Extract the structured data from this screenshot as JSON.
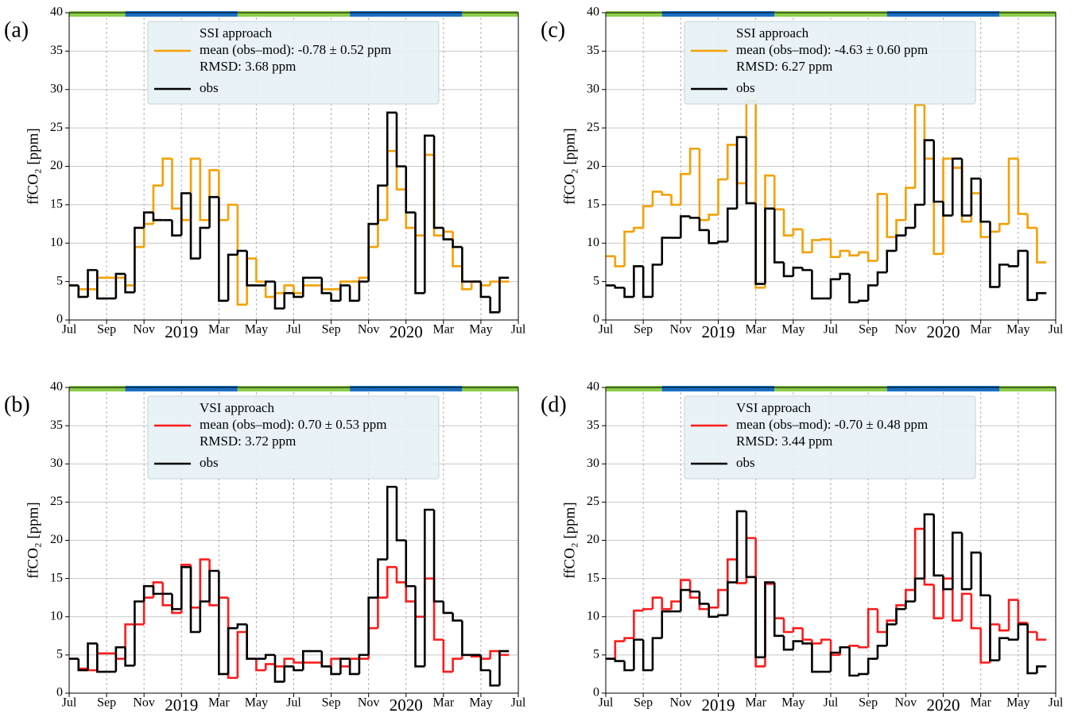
{
  "chart_data": [
    {
      "type": "line",
      "panel_label": "(a)",
      "ylabel": "ffCO₂ [ppm]",
      "step": "post",
      "grid": true,
      "xlim": [
        0,
        24
      ],
      "ylim": [
        0,
        40
      ],
      "xticks": [
        {
          "value": 0,
          "label": "Jul"
        },
        {
          "value": 2,
          "label": "Sep"
        },
        {
          "value": 4,
          "label": "Nov"
        },
        {
          "value": 6,
          "label": "2019"
        },
        {
          "value": 8,
          "label": "Mar"
        },
        {
          "value": 10,
          "label": "May"
        },
        {
          "value": 12,
          "label": "Jul"
        },
        {
          "value": 14,
          "label": "Sep"
        },
        {
          "value": 16,
          "label": "Nov"
        },
        {
          "value": 18,
          "label": "2020"
        },
        {
          "value": 20,
          "label": "Mar"
        },
        {
          "value": 22,
          "label": "May"
        },
        {
          "value": 24,
          "label": "Jul"
        }
      ],
      "yticks": [
        0,
        5,
        10,
        15,
        20,
        25,
        30,
        35,
        40
      ],
      "legend_title": "SSI approach",
      "legend_note": "RMSD: 3.68 ppm",
      "x": [
        0,
        0.5,
        1,
        1.5,
        2,
        2.5,
        3,
        3.5,
        4,
        4.5,
        5,
        5.5,
        6,
        6.5,
        7,
        7.5,
        8,
        8.5,
        9,
        9.5,
        10,
        10.5,
        11,
        11.5,
        12,
        12.5,
        13,
        13.5,
        14,
        14.5,
        15,
        15.5,
        16,
        16.5,
        17,
        17.5,
        18,
        18.5,
        19,
        19.5,
        20,
        20.5,
        21,
        21.5,
        22,
        22.5,
        23
      ],
      "series": [
        {
          "name": "mean (obs–mod): -0.78 ± 0.52 ppm",
          "color": "#f5a000",
          "values": [
            4.5,
            4,
            4,
            5.5,
            5.5,
            5.5,
            4.5,
            9.5,
            12.5,
            17.5,
            21,
            14.5,
            13,
            21,
            13,
            19.5,
            13,
            15,
            2,
            8,
            5,
            3,
            3.5,
            4.5,
            3.5,
            4.5,
            4.5,
            4,
            4,
            5,
            5,
            5.5,
            9.5,
            13,
            22,
            17,
            12,
            11,
            21.5,
            11,
            11.5,
            7,
            4,
            5,
            4.5,
            5,
            5
          ]
        },
        {
          "name": "obs",
          "color": "#000000",
          "values": [
            4.5,
            3,
            6.5,
            2.8,
            2.8,
            6,
            3.6,
            12,
            14,
            13,
            13,
            11,
            16.5,
            8,
            12,
            16,
            2.5,
            8.5,
            9,
            4.5,
            4.5,
            5,
            1.5,
            3.5,
            3,
            5.5,
            5.5,
            3.5,
            2.5,
            4.5,
            2.5,
            5,
            12.5,
            17.5,
            27,
            20,
            14,
            3.5,
            24,
            12,
            10.5,
            9.5,
            5,
            5,
            3,
            1,
            5.5
          ]
        }
      ]
    },
    {
      "type": "line",
      "panel_label": "(b)",
      "ylabel": "ffCO₂ [ppm]",
      "step": "post",
      "grid": true,
      "xlim": [
        0,
        24
      ],
      "ylim": [
        0,
        40
      ],
      "xticks": [
        {
          "value": 0,
          "label": "Jul"
        },
        {
          "value": 2,
          "label": "Sep"
        },
        {
          "value": 4,
          "label": "Nov"
        },
        {
          "value": 6,
          "label": "2019"
        },
        {
          "value": 8,
          "label": "Mar"
        },
        {
          "value": 10,
          "label": "May"
        },
        {
          "value": 12,
          "label": "Jul"
        },
        {
          "value": 14,
          "label": "Sep"
        },
        {
          "value": 16,
          "label": "Nov"
        },
        {
          "value": 18,
          "label": "2020"
        },
        {
          "value": 20,
          "label": "Mar"
        },
        {
          "value": 22,
          "label": "May"
        },
        {
          "value": 24,
          "label": "Jul"
        }
      ],
      "yticks": [
        0,
        5,
        10,
        15,
        20,
        25,
        30,
        35,
        40
      ],
      "legend_title": "VSI approach",
      "legend_note": "RMSD: 3.72 ppm",
      "x": [
        0,
        0.5,
        1,
        1.5,
        2,
        2.5,
        3,
        3.5,
        4,
        4.5,
        5,
        5.5,
        6,
        6.5,
        7,
        7.5,
        8,
        8.5,
        9,
        9.5,
        10,
        10.5,
        11,
        11.5,
        12,
        12.5,
        13,
        13.5,
        14,
        14.5,
        15,
        15.5,
        16,
        16.5,
        17,
        17.5,
        18,
        18.5,
        19,
        19.5,
        20,
        20.5,
        21,
        21.5,
        22,
        22.5,
        23
      ],
      "series": [
        {
          "name": "mean (obs–mod): 0.70 ± 0.53 ppm",
          "color": "#ff1a1a",
          "values": [
            4.5,
            3.2,
            3,
            5.2,
            5.2,
            4.5,
            9,
            9,
            12.5,
            14.5,
            11.5,
            10.5,
            16.8,
            11.2,
            17.5,
            11.5,
            12.5,
            2,
            8,
            4.5,
            3,
            3.8,
            3.5,
            4.5,
            4,
            4,
            4,
            3.5,
            4.5,
            3.5,
            4.5,
            4.5,
            8.5,
            12.5,
            16.5,
            14.5,
            12,
            10,
            15,
            7,
            2.8,
            4.5,
            5,
            4.8,
            4.5,
            5.5,
            5
          ]
        },
        {
          "name": "obs",
          "color": "#000000",
          "values": [
            4.5,
            3,
            6.5,
            2.8,
            2.8,
            6,
            3.6,
            12,
            14,
            13,
            13,
            11,
            16.5,
            8,
            12,
            16,
            2.5,
            8.5,
            9,
            4.5,
            4.5,
            5,
            1.5,
            3.5,
            3,
            5.5,
            5.5,
            3.5,
            2.5,
            4.5,
            2.5,
            5,
            12.5,
            17.5,
            27,
            20,
            14,
            3.5,
            24,
            12,
            10.5,
            9.5,
            5,
            5,
            3,
            1,
            5.5
          ]
        }
      ]
    },
    {
      "type": "line",
      "panel_label": "(c)",
      "ylabel": "ffCO₂ [ppm]",
      "step": "post",
      "grid": true,
      "xlim": [
        0,
        24
      ],
      "ylim": [
        0,
        40
      ],
      "xticks": [
        {
          "value": 0,
          "label": "Jul"
        },
        {
          "value": 2,
          "label": "Sep"
        },
        {
          "value": 4,
          "label": "Nov"
        },
        {
          "value": 6,
          "label": "2019"
        },
        {
          "value": 8,
          "label": "Mar"
        },
        {
          "value": 10,
          "label": "May"
        },
        {
          "value": 12,
          "label": "Jul"
        },
        {
          "value": 14,
          "label": "Sep"
        },
        {
          "value": 16,
          "label": "Nov"
        },
        {
          "value": 18,
          "label": "2020"
        },
        {
          "value": 20,
          "label": "Mar"
        },
        {
          "value": 22,
          "label": "May"
        },
        {
          "value": 24,
          "label": "Jul"
        }
      ],
      "yticks": [
        0,
        5,
        10,
        15,
        20,
        25,
        30,
        35,
        40
      ],
      "legend_title": "SSI approach",
      "legend_note": "RMSD: 6.27 ppm",
      "x": [
        0,
        0.5,
        1,
        1.5,
        2,
        2.5,
        3,
        3.5,
        4,
        4.5,
        5,
        5.5,
        6,
        6.5,
        7,
        7.5,
        8,
        8.5,
        9,
        9.5,
        10,
        10.5,
        11,
        11.5,
        12,
        12.5,
        13,
        13.5,
        14,
        14.5,
        15,
        15.5,
        16,
        16.5,
        17,
        17.5,
        18,
        18.5,
        19,
        19.5,
        20,
        20.5,
        21,
        21.5,
        22,
        22.5,
        23
      ],
      "series": [
        {
          "name": "mean (obs–mod): -4.63 ± 0.60 ppm",
          "color": "#f5a000",
          "values": [
            8.3,
            7,
            11.5,
            12,
            14.8,
            16.7,
            16.3,
            15,
            19,
            22.3,
            13,
            13.7,
            18.3,
            22.8,
            17.8,
            28.5,
            4.2,
            18.8,
            14.4,
            11,
            11.8,
            8.8,
            10.4,
            10.5,
            8.2,
            9,
            8.4,
            8.8,
            7.7,
            16.4,
            10.8,
            13,
            17.2,
            28,
            21,
            8.6,
            21,
            19.8,
            12.8,
            16.5,
            10.8,
            11.5,
            12.5,
            21,
            13.8,
            12,
            7.5
          ]
        },
        {
          "name": "obs",
          "color": "#000000",
          "values": [
            4.5,
            4.2,
            3,
            7,
            3,
            7.2,
            10.7,
            10.7,
            13.5,
            13.3,
            11.7,
            10,
            10.2,
            14.5,
            23.8,
            15.2,
            4.7,
            14.5,
            7.5,
            5.7,
            6.8,
            6.5,
            2.8,
            2.8,
            5.3,
            6,
            2.3,
            2.5,
            4.5,
            6.2,
            9,
            11,
            12,
            15,
            23.4,
            15.4,
            13.6,
            21,
            13.6,
            18.4,
            12.8,
            4.3,
            7.2,
            7,
            9,
            2.6,
            3.5
          ]
        }
      ]
    },
    {
      "type": "line",
      "panel_label": "(d)",
      "ylabel": "ffCO₂ [ppm]",
      "step": "post",
      "grid": true,
      "xlim": [
        0,
        24
      ],
      "ylim": [
        0,
        40
      ],
      "xticks": [
        {
          "value": 0,
          "label": "Jul"
        },
        {
          "value": 2,
          "label": "Sep"
        },
        {
          "value": 4,
          "label": "Nov"
        },
        {
          "value": 6,
          "label": "2019"
        },
        {
          "value": 8,
          "label": "Mar"
        },
        {
          "value": 10,
          "label": "May"
        },
        {
          "value": 12,
          "label": "Jul"
        },
        {
          "value": 14,
          "label": "Sep"
        },
        {
          "value": 16,
          "label": "Nov"
        },
        {
          "value": 18,
          "label": "2020"
        },
        {
          "value": 20,
          "label": "Mar"
        },
        {
          "value": 22,
          "label": "May"
        },
        {
          "value": 24,
          "label": "Jul"
        }
      ],
      "yticks": [
        0,
        5,
        10,
        15,
        20,
        25,
        30,
        35,
        40
      ],
      "legend_title": "VSI approach",
      "legend_note": "RMSD: 3.44 ppm",
      "x": [
        0,
        0.5,
        1,
        1.5,
        2,
        2.5,
        3,
        3.5,
        4,
        4.5,
        5,
        5.5,
        6,
        6.5,
        7,
        7.5,
        8,
        8.5,
        9,
        9.5,
        10,
        10.5,
        11,
        11.5,
        12,
        12.5,
        13,
        13.5,
        14,
        14.5,
        15,
        15.5,
        16,
        16.5,
        17,
        17.5,
        18,
        18.5,
        19,
        19.5,
        20,
        20.5,
        21,
        21.5,
        22,
        22.5,
        23
      ],
      "series": [
        {
          "name": "mean (obs–mod): -0.70 ± 0.48 ppm",
          "color": "#ff1a1a",
          "values": [
            4.5,
            6.8,
            7.2,
            10.8,
            11,
            12.5,
            11,
            12,
            14.8,
            12.5,
            11,
            11.2,
            13.5,
            17.5,
            14.4,
            20.3,
            3.5,
            14.3,
            9.8,
            8,
            8.5,
            7,
            6.5,
            7,
            5,
            6,
            6.2,
            6,
            11,
            8,
            9.5,
            11.5,
            13.5,
            21.5,
            14.2,
            9.8,
            15,
            9.5,
            13,
            8.5,
            4,
            9,
            8.2,
            12.2,
            9.2,
            8,
            7
          ]
        },
        {
          "name": "obs",
          "color": "#000000",
          "values": [
            4.5,
            4.2,
            3,
            7,
            3,
            7.2,
            10.7,
            10.7,
            13.5,
            13.3,
            11.7,
            10,
            10.2,
            14.5,
            23.8,
            15.2,
            4.7,
            14.5,
            7.5,
            5.7,
            6.8,
            6.5,
            2.8,
            2.8,
            5.3,
            6,
            2.3,
            2.5,
            4.5,
            6.2,
            9,
            11,
            12,
            15,
            23.4,
            15.4,
            13.6,
            21,
            13.6,
            18.4,
            12.8,
            4.3,
            7.2,
            7,
            9,
            2.6,
            3.5
          ]
        }
      ]
    }
  ]
}
